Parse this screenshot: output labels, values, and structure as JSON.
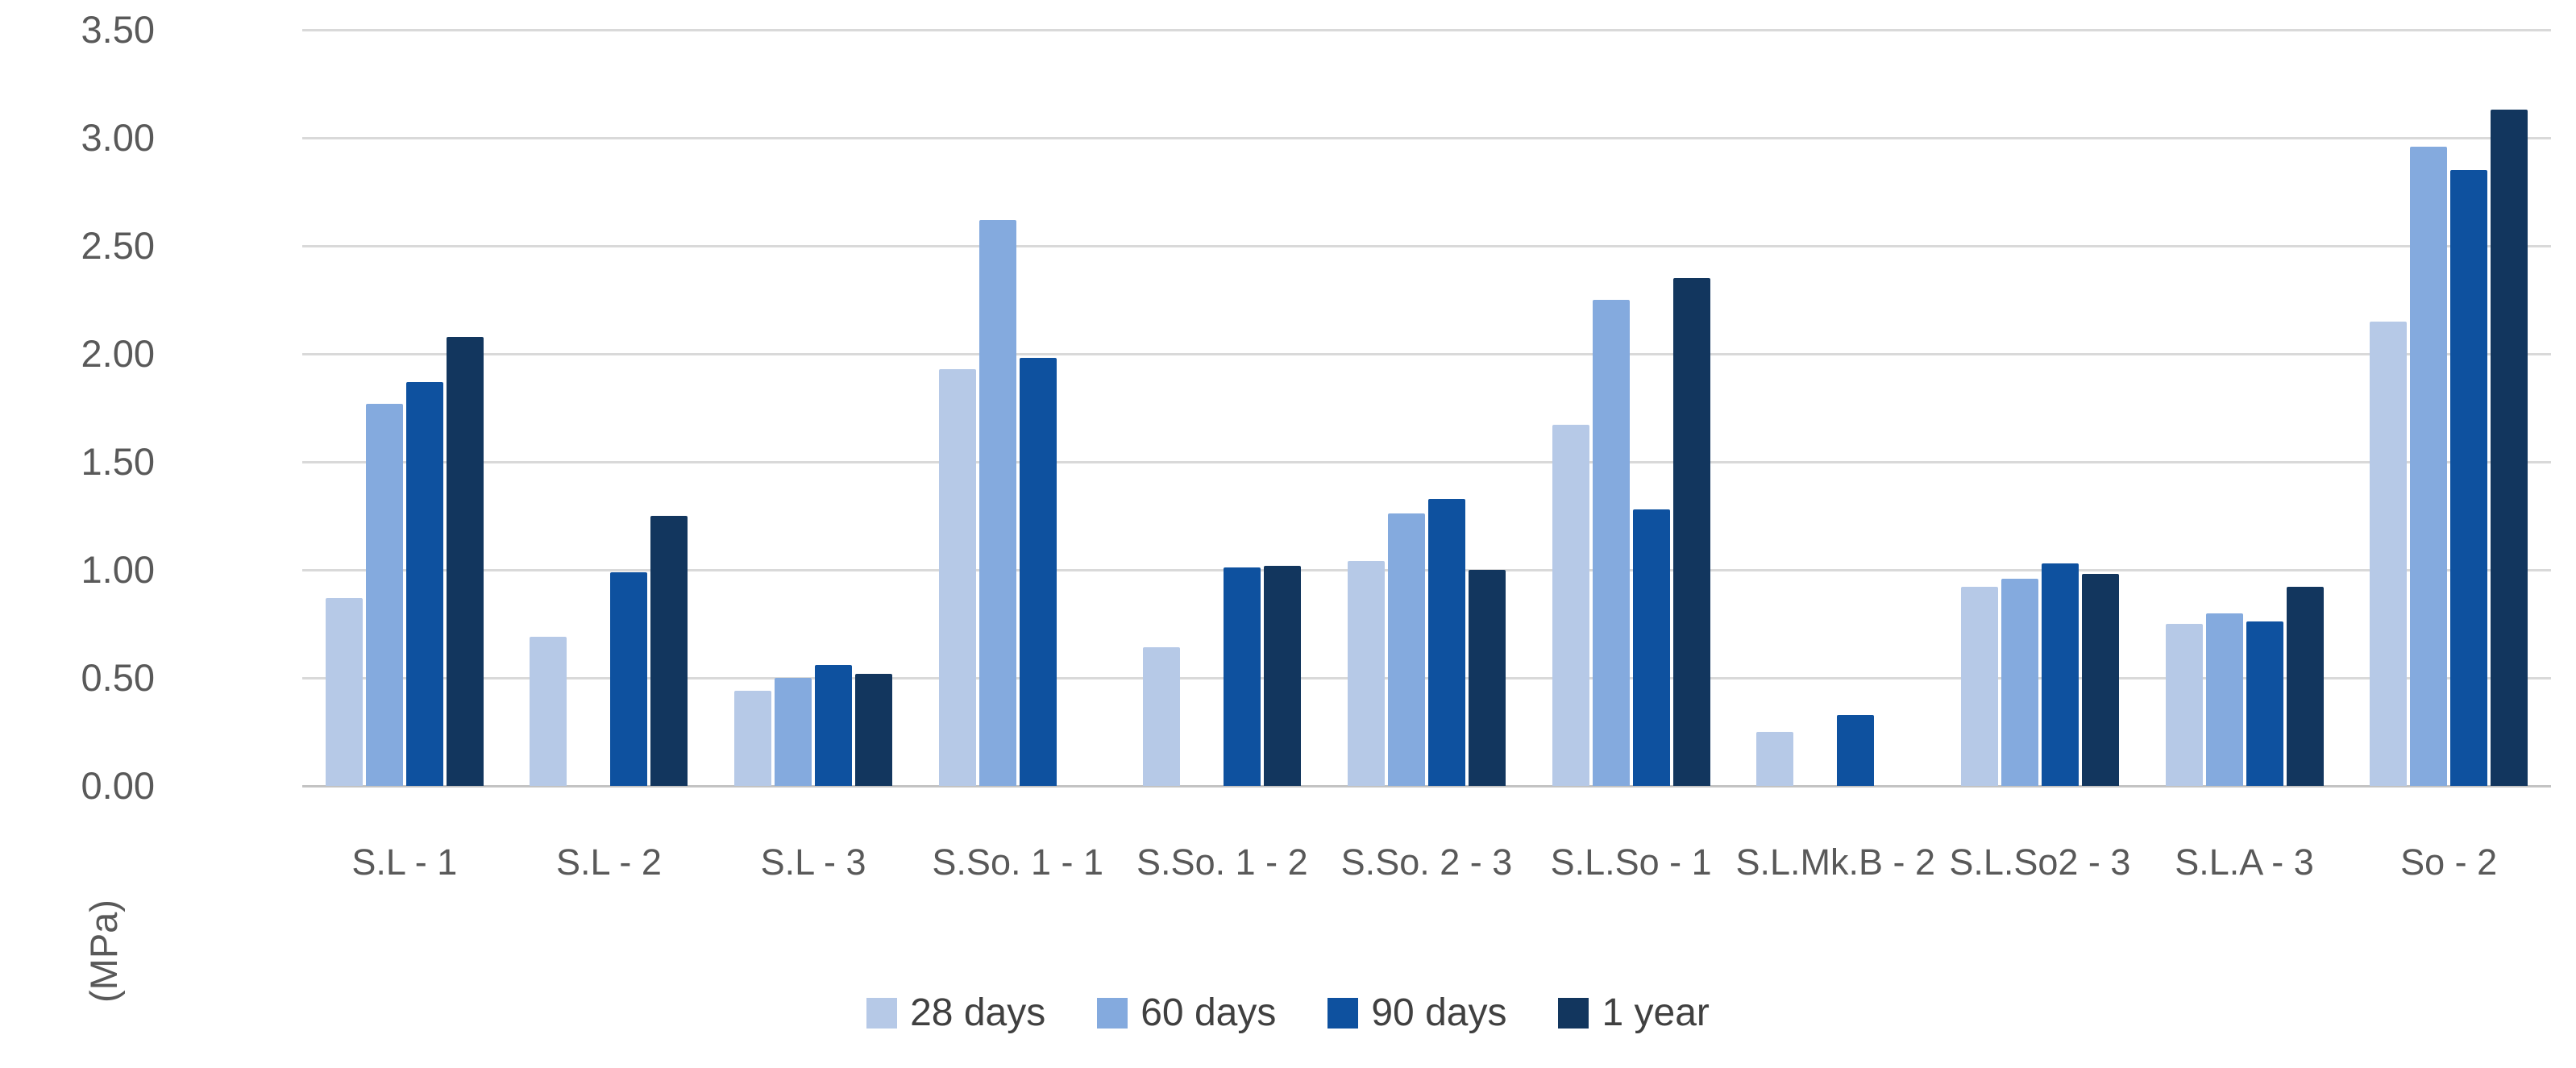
{
  "chart_data": {
    "type": "bar",
    "title": "",
    "ylabel": "(MPa)",
    "ylim": [
      0,
      3.5
    ],
    "ytick_step": 0.5,
    "ytick_labels": [
      "3.50",
      "3.00",
      "2.50",
      "2.00",
      "1.50",
      "1.00",
      "0.50",
      "0.00"
    ],
    "grid": true,
    "legend_position": "bottom",
    "categories": [
      "S.L - 1",
      "S.L - 2",
      "S.L - 3",
      "S.So. 1 - 1",
      "S.So. 1 - 2",
      "S.So. 2 - 3",
      "S.L.So - 1",
      "S.L.Mk.B - 2",
      "S.L.So2 - 3",
      "S.L.A - 3",
      "So - 2"
    ],
    "series": [
      {
        "name": "28 days",
        "color": "#b6c9e7",
        "values": [
          0.87,
          0.69,
          0.44,
          1.93,
          0.64,
          1.04,
          1.67,
          0.25,
          0.92,
          0.75,
          2.15
        ]
      },
      {
        "name": "60 days",
        "color": "#84aade",
        "values": [
          1.77,
          null,
          0.5,
          2.62,
          null,
          1.26,
          2.25,
          null,
          0.96,
          0.8,
          2.96
        ]
      },
      {
        "name": "90 days",
        "color": "#0e519f",
        "values": [
          1.87,
          0.99,
          0.56,
          1.98,
          1.01,
          1.33,
          1.28,
          0.33,
          1.03,
          0.76,
          2.85
        ]
      },
      {
        "name": "1 year",
        "color": "#12365e",
        "values": [
          2.08,
          1.25,
          0.52,
          null,
          1.02,
          1.0,
          2.35,
          null,
          0.98,
          0.92,
          3.13
        ]
      }
    ]
  },
  "colors": {
    "gridline": "#d9d9d9",
    "axis_line": "#c3c3c3",
    "tick_text": "#595959",
    "legend_text": "#404040"
  }
}
